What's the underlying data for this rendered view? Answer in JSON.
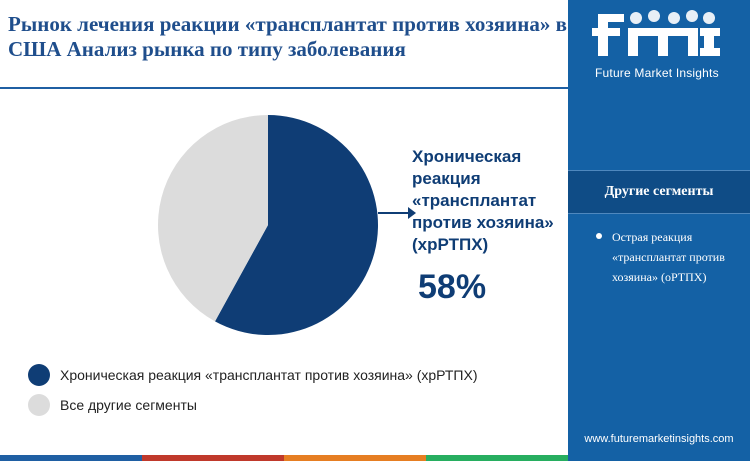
{
  "header": {
    "title": "Рынок лечения реакции «трансплантат против хозяина» в США Анализ рынка по типу заболевания"
  },
  "brand": {
    "logo_text": "fmi",
    "logo_subtitle": "Future Market Insights",
    "website": "www.futuremarketinsights.com"
  },
  "sidebar": {
    "heading": "Другие сегменты",
    "items": [
      {
        "label": "Острая реакция «трансплантат против хозяина» (оРТПХ)"
      }
    ]
  },
  "callout": {
    "label": "Хроническая реакция «трансплантат против хозяина» (хрРТПХ)",
    "value": "58%"
  },
  "chart_data": {
    "type": "pie",
    "title": "",
    "slices": [
      {
        "label": "Хроническая реакция «трансплантат против хозяина» (хрРТПХ)",
        "value": 58,
        "color": "#0f3d75"
      },
      {
        "label": "Все другие сегменты",
        "value": 42,
        "color": "#dcdcdc"
      }
    ],
    "legend_position": "bottom-left"
  },
  "legend": [
    {
      "label": "Хроническая реакция «трансплантат против хозяина» (хрРТПХ)",
      "color": "#0f3d75"
    },
    {
      "label": "Все другие сегменты",
      "color": "#dcdcdc"
    }
  ],
  "colors": {
    "title": "#1f4e8c",
    "sidebar_bg": "#1461a5",
    "accent_dark": "#0f3d75",
    "bottom_bar": [
      "#1f5fa3",
      "#c0392b",
      "#e67e22",
      "#27ae60"
    ]
  }
}
